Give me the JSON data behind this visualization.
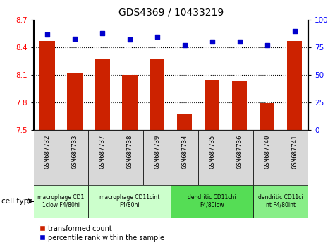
{
  "title": "GDS4369 / 10433219",
  "samples": [
    "GSM687732",
    "GSM687733",
    "GSM687737",
    "GSM687738",
    "GSM687739",
    "GSM687734",
    "GSM687735",
    "GSM687736",
    "GSM687740",
    "GSM687741"
  ],
  "bar_values": [
    8.47,
    8.12,
    8.27,
    8.1,
    8.28,
    7.67,
    8.05,
    8.04,
    7.79,
    8.47
  ],
  "scatter_values": [
    87,
    83,
    88,
    82,
    85,
    77,
    80,
    80,
    77,
    90
  ],
  "ylim_left": [
    7.5,
    8.7
  ],
  "ylim_right": [
    0,
    100
  ],
  "yticks_left": [
    7.5,
    7.8,
    8.1,
    8.4,
    8.7
  ],
  "yticks_right": [
    0,
    25,
    50,
    75,
    100
  ],
  "bar_color": "#cc2200",
  "scatter_color": "#0000cc",
  "hgrid_values": [
    7.8,
    8.1,
    8.4
  ],
  "cell_type_groups": [
    {
      "label": "macrophage CD1\n1clow F4/80hi",
      "start": 0,
      "end": 2,
      "color": "#ccffcc"
    },
    {
      "label": "macrophage CD11cint\nF4/80hi",
      "start": 2,
      "end": 5,
      "color": "#ccffcc"
    },
    {
      "label": "dendritic CD11chi\nF4/80low",
      "start": 5,
      "end": 8,
      "color": "#55dd55"
    },
    {
      "label": "dendritic CD11ci\nnt F4/80int",
      "start": 8,
      "end": 10,
      "color": "#88ee88"
    }
  ],
  "legend_bar_label": "transformed count",
  "legend_scatter_label": "percentile rank within the sample",
  "cell_type_label": "cell type",
  "plot_bg_color": "#ffffff",
  "sample_box_color": "#d8d8d8",
  "bar_bottom": 7.5
}
